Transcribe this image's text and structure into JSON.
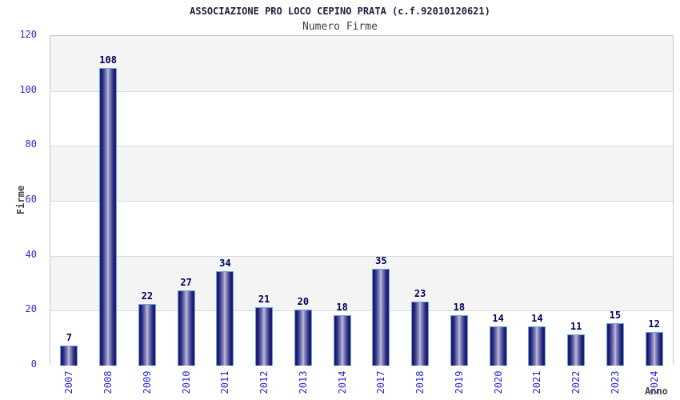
{
  "title": "ASSOCIAZIONE PRO LOCO CEPINO PRATA (c.f.92010120621)",
  "subtitle": "Numero Firme",
  "axis": {
    "ylabel": "Firme",
    "xlabel": "Anno"
  },
  "colors": {
    "tick_label": "#2b2bd0",
    "value_label": "#00005a",
    "band_gray": "#f4f4f4",
    "band_white": "#ffffff",
    "gridline": "#dcdcdc",
    "plot_border": "#c8c8c8",
    "bar_dark": "#14145e",
    "bar_light": "#c6c6dc",
    "bar_border": "#6aa2e0"
  },
  "chart_data": {
    "type": "bar",
    "title": "ASSOCIAZIONE PRO LOCO CEPINO PRATA (c.f.92010120621)",
    "subtitle": "Numero Firme",
    "categories": [
      "2007",
      "2008",
      "2009",
      "2010",
      "2011",
      "2012",
      "2013",
      "2014",
      "2017",
      "2018",
      "2019",
      "2020",
      "2021",
      "2022",
      "2023",
      "2024"
    ],
    "values": [
      7,
      108,
      22,
      27,
      34,
      21,
      20,
      18,
      35,
      23,
      18,
      14,
      14,
      11,
      15,
      12
    ],
    "xlabel": "Anno",
    "ylabel": "Firme",
    "ylim": [
      0,
      120
    ],
    "yticks": [
      0,
      20,
      40,
      60,
      80,
      100,
      120
    ],
    "grid": true,
    "legend": false,
    "bar_labels_shown": true,
    "x_labels_rotation_deg": -90
  }
}
